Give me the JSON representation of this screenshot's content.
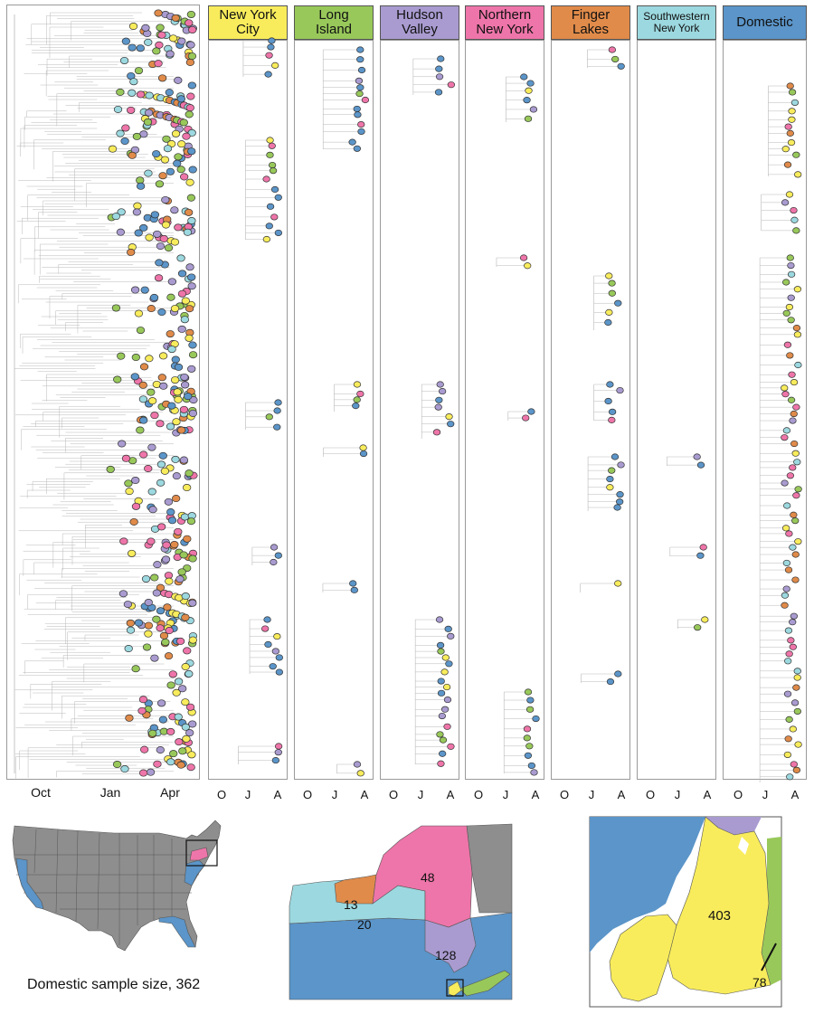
{
  "colors": {
    "new_york_city": "#f8ec5c",
    "long_island": "#98c85a",
    "hudson_valley": "#a99bd0",
    "northern_new_york": "#ee75a9",
    "finger_lakes": "#e08b4a",
    "southwestern_new_york": "#9cd8df",
    "domestic": "#5b95c9",
    "other_states": "#8e8e8e",
    "tree_line": "#b8b8b8"
  },
  "main_tree": {
    "x_ticks": [
      "Oct",
      "Jan",
      "Apr"
    ]
  },
  "region_panels": [
    {
      "key": "new_york_city",
      "label_lines": [
        "New York",
        "City"
      ],
      "color": "#f8ec5c"
    },
    {
      "key": "long_island",
      "label_lines": [
        "Long",
        "Island"
      ],
      "color": "#98c85a"
    },
    {
      "key": "hudson_valley",
      "label_lines": [
        "Hudson",
        "Valley"
      ],
      "color": "#a99bd0"
    },
    {
      "key": "northern_new_york",
      "label_lines": [
        "Northern",
        "New York"
      ],
      "color": "#ee75a9"
    },
    {
      "key": "finger_lakes",
      "label_lines": [
        "Finger",
        "Lakes"
      ],
      "color": "#e08b4a"
    },
    {
      "key": "southwestern_new_york",
      "label_lines": [
        "Southwestern",
        "New York"
      ],
      "color": "#9cd8df"
    },
    {
      "key": "domestic",
      "label_lines": [
        "Domestic"
      ],
      "color": "#5b95c9"
    }
  ],
  "panel_ticks": [
    "O",
    "J",
    "A"
  ],
  "maps": {
    "us_caption": "Domestic sample size, 362",
    "ny_state_counts": {
      "northern": "48",
      "finger_lakes": "13",
      "southwestern": "20",
      "hudson_valley": "128"
    },
    "nyc_counts": {
      "new_york_city": "403",
      "long_island": "78"
    }
  }
}
